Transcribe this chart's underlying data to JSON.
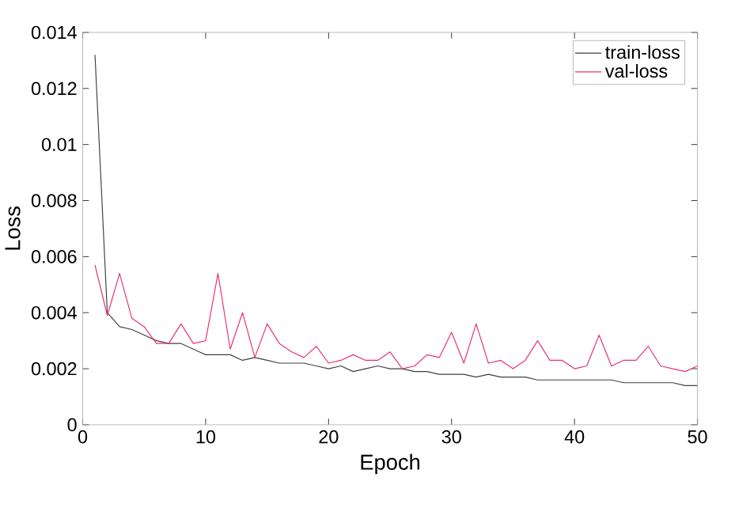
{
  "chart_data": {
    "type": "line",
    "xlabel": "Epoch",
    "ylabel": "Loss",
    "x": [
      1,
      2,
      3,
      4,
      5,
      6,
      7,
      8,
      9,
      10,
      11,
      12,
      13,
      14,
      15,
      16,
      17,
      18,
      19,
      20,
      21,
      22,
      23,
      24,
      25,
      26,
      27,
      28,
      29,
      30,
      31,
      32,
      33,
      34,
      35,
      36,
      37,
      38,
      39,
      40,
      41,
      42,
      43,
      44,
      45,
      46,
      47,
      48,
      49,
      50
    ],
    "series": [
      {
        "name": "train-loss",
        "color": "#404040",
        "values": [
          0.0132,
          0.004,
          0.0035,
          0.0034,
          0.0032,
          0.003,
          0.0029,
          0.0029,
          0.0027,
          0.0025,
          0.0025,
          0.0025,
          0.0023,
          0.0024,
          0.0023,
          0.0022,
          0.0022,
          0.0022,
          0.0021,
          0.002,
          0.0021,
          0.0019,
          0.002,
          0.0021,
          0.002,
          0.002,
          0.0019,
          0.0019,
          0.0018,
          0.0018,
          0.0018,
          0.0017,
          0.0018,
          0.0017,
          0.0017,
          0.0017,
          0.0016,
          0.0016,
          0.0016,
          0.0016,
          0.0016,
          0.0016,
          0.0016,
          0.0015,
          0.0015,
          0.0015,
          0.0015,
          0.0015,
          0.0014,
          0.0014
        ]
      },
      {
        "name": "val-loss",
        "color": "#e8336a",
        "values": [
          0.0057,
          0.0039,
          0.0054,
          0.0038,
          0.0035,
          0.0029,
          0.0029,
          0.0036,
          0.0029,
          0.003,
          0.0054,
          0.0027,
          0.004,
          0.0024,
          0.0036,
          0.0029,
          0.0026,
          0.0024,
          0.0028,
          0.0022,
          0.0023,
          0.0025,
          0.0023,
          0.0023,
          0.0026,
          0.002,
          0.0021,
          0.0025,
          0.0024,
          0.0033,
          0.0022,
          0.0036,
          0.0022,
          0.0023,
          0.002,
          0.0023,
          0.003,
          0.0023,
          0.0023,
          0.002,
          0.0021,
          0.0032,
          0.0021,
          0.0023,
          0.0023,
          0.0028,
          0.0021,
          0.002,
          0.0019,
          0.0021
        ]
      }
    ],
    "xlim": [
      0,
      50
    ],
    "xticks": [
      0,
      10,
      20,
      30,
      40,
      50
    ],
    "ylim": [
      0,
      0.014
    ],
    "yticks": [
      0,
      0.002,
      0.004,
      0.006,
      0.008,
      0.01,
      0.012,
      0.014
    ],
    "grid": false,
    "legend": "top right",
    "marker": "none",
    "line_style": "solid"
  }
}
